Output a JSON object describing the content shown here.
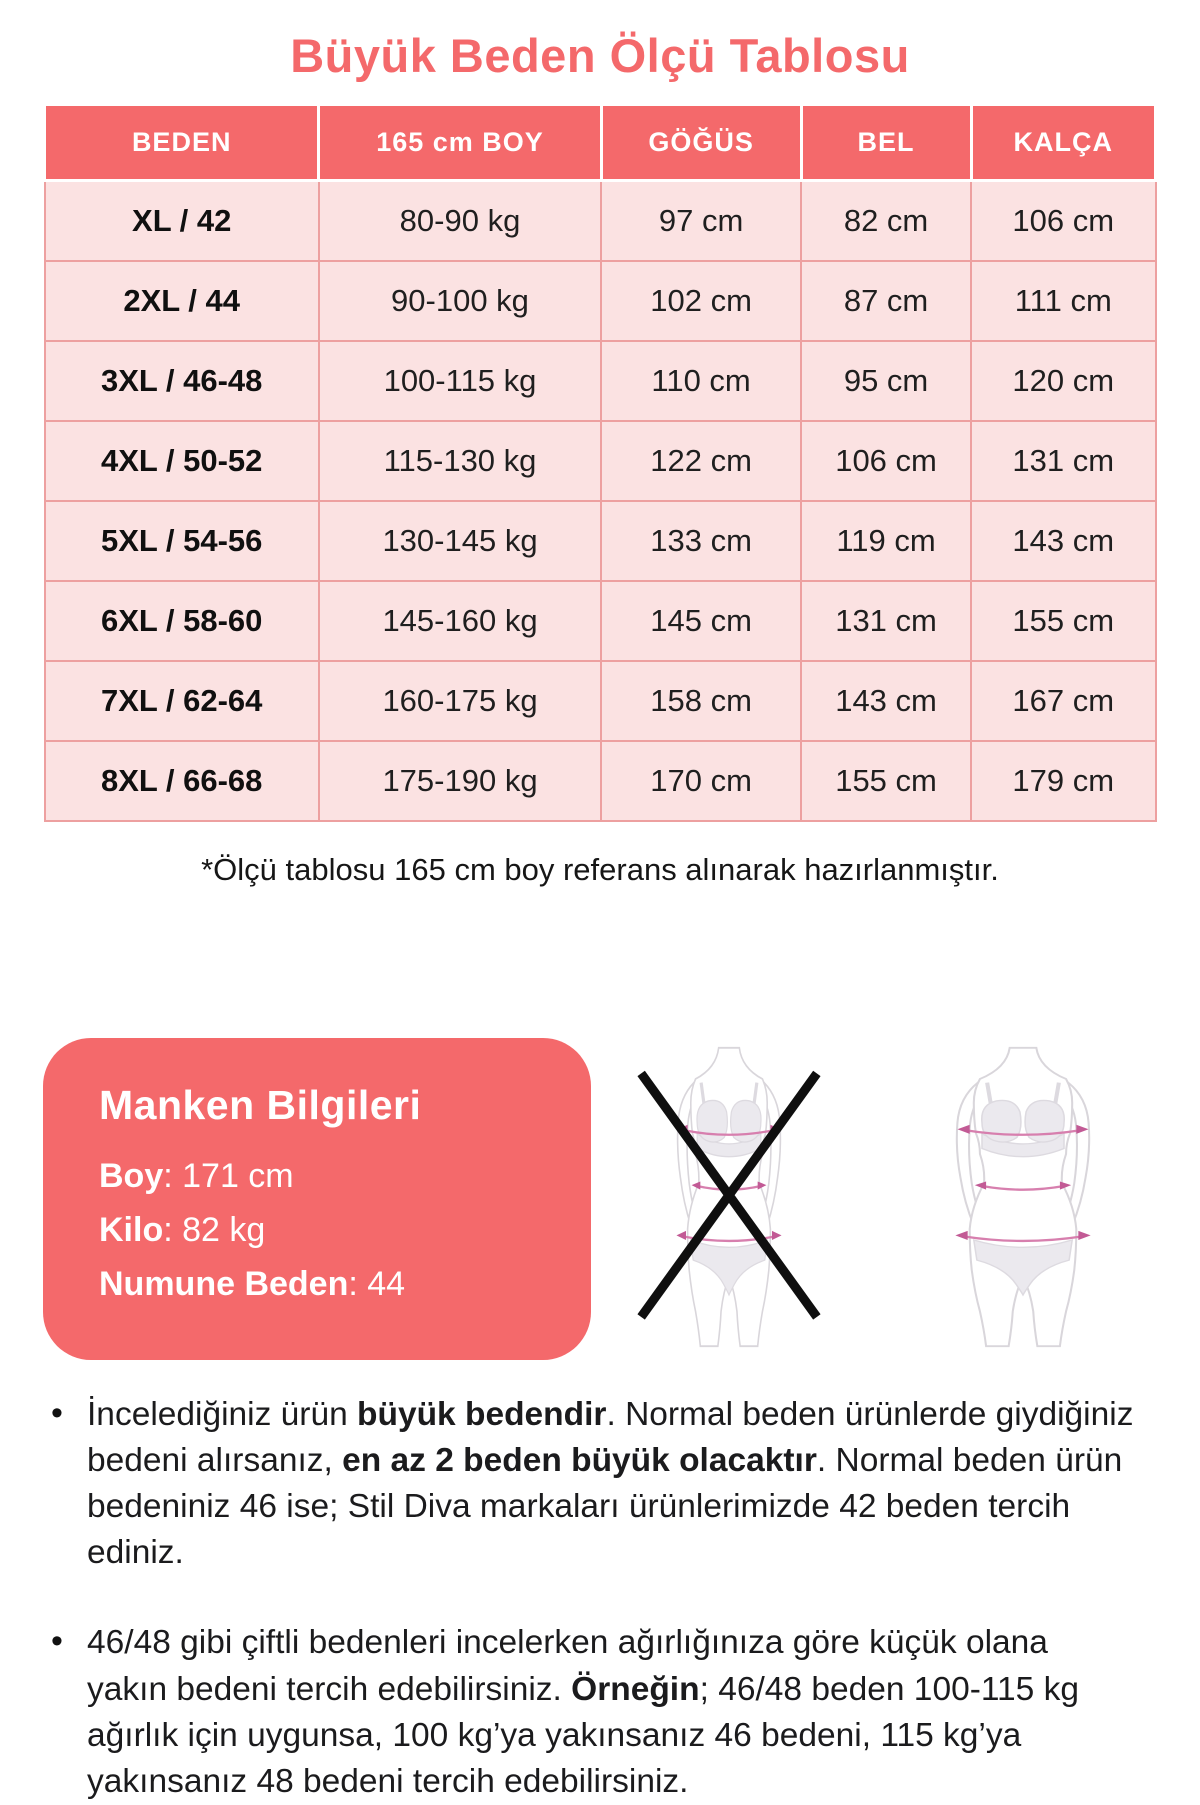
{
  "title": "Büyük Beden Ölçü Tablosu",
  "table": {
    "headers": [
      "BEDEN",
      "165 cm BOY",
      "GÖĞÜS",
      "BEL",
      "KALÇA"
    ],
    "rows": [
      [
        "XL / 42",
        "80-90 kg",
        "97 cm",
        "82 cm",
        "106 cm"
      ],
      [
        "2XL / 44",
        "90-100 kg",
        "102 cm",
        "87 cm",
        "111 cm"
      ],
      [
        "3XL / 46-48",
        "100-115 kg",
        "110 cm",
        "95 cm",
        "120 cm"
      ],
      [
        "4XL / 50-52",
        "115-130 kg",
        "122 cm",
        "106 cm",
        "131 cm"
      ],
      [
        "5XL / 54-56",
        "130-145 kg",
        "133 cm",
        "119 cm",
        "143 cm"
      ],
      [
        "6XL / 58-60",
        "145-160 kg",
        "145 cm",
        "131 cm",
        "155 cm"
      ],
      [
        "7XL / 62-64",
        "160-175 kg",
        "158 cm",
        "143 cm",
        "167 cm"
      ],
      [
        "8XL / 66-68",
        "175-190 kg",
        "170 cm",
        "155 cm",
        "179 cm"
      ]
    ],
    "footnote": "*Ölçü tablosu 165 cm boy referans alınarak hazırlanmıştır."
  },
  "model_info": {
    "title": "Manken Bilgileri",
    "lines": [
      {
        "segments": [
          {
            "t": "Boy",
            "b": true
          },
          {
            "t": ": 171 cm"
          }
        ]
      },
      {
        "segments": [
          {
            "t": "Kilo",
            "b": true
          },
          {
            "t": ": 82 kg"
          }
        ]
      },
      {
        "segments": [
          {
            "t": "Numune Beden",
            "b": true
          },
          {
            "t": ": 44"
          }
        ]
      }
    ]
  },
  "notes": [
    {
      "segments": [
        {
          "t": "İncelediğiniz ürün "
        },
        {
          "t": "büyük bedendir",
          "b": true
        },
        {
          "t": ". Normal beden ürünlerde giydiğiniz bedeni alırsanız, "
        },
        {
          "t": "en az 2 beden büyük olacaktır",
          "b": true
        },
        {
          "t": ". Normal beden ürün bedeniniz 46 ise; Stil Diva markaları ürünlerimizde 42 beden tercih ediniz."
        }
      ]
    },
    {
      "segments": [
        {
          "t": "46/48 gibi çiftli bedenleri incelerken ağırlığınıza göre küçük olana yakın bedeni tercih edebilirsiniz. "
        },
        {
          "t": "Örneğin",
          "b": true
        },
        {
          "t": "; 46/48 beden 100-115 kg ağırlık için uygunsa, 100 kg’ya yakınsanız 46 bedeni, 115 kg’ya yakınsanız 48 bedeni tercih edebilirsiniz."
        }
      ]
    }
  ],
  "colors": {
    "accent": "#f4696b",
    "cell_bg": "#fbe2e2",
    "cell_border": "#eda0a0",
    "header_text": "#ffffff",
    "cell_text": "#1f1f1f",
    "note_text": "#1b1b1d",
    "measure_line": "#d77fae",
    "measure_arrow": "#c25a95",
    "figure_outline": "#d9d6db",
    "garment": "#ebe9ee",
    "x_mark": "#0f0f0f"
  }
}
